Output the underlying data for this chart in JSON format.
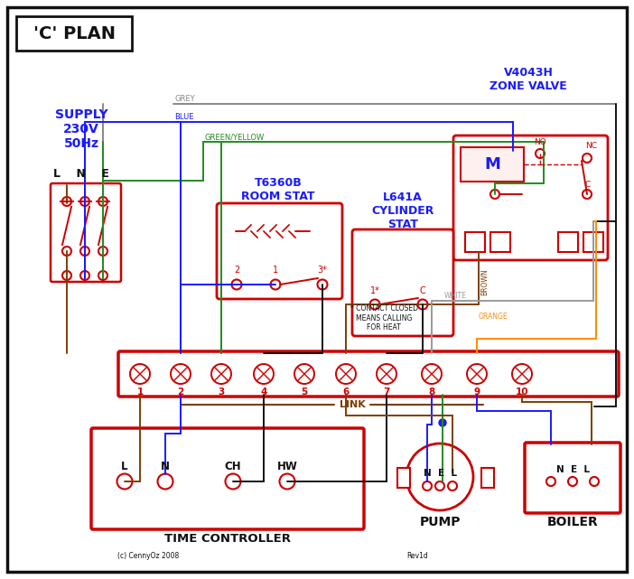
{
  "title": "'C' PLAN",
  "supply_text": "SUPPLY\n230V\n50Hz",
  "zone_valve_title": "V4043H\nZONE VALVE",
  "room_stat_title": "T6360B\nROOM STAT",
  "cylinder_stat_title": "L641A\nCYLINDER\nSTAT",
  "time_controller_title": "TIME CONTROLLER",
  "pump_title": "PUMP",
  "boiler_title": "BOILER",
  "link_label": "LINK",
  "terminal_labels": [
    "1",
    "2",
    "3",
    "4",
    "5",
    "6",
    "7",
    "8",
    "9",
    "10"
  ],
  "contact_note": "* CONTACT CLOSED\nMEANS CALLING\nFOR HEAT",
  "copyright": "(c) CennyOz 2008",
  "revision": "Rev1d",
  "red": "#cc0000",
  "black": "#111111",
  "blue": "#1a1aff",
  "brown": "#7B3F00",
  "grey": "#888888",
  "green": "#228B22",
  "orange": "#FF8C00",
  "white_wire": "#999999"
}
